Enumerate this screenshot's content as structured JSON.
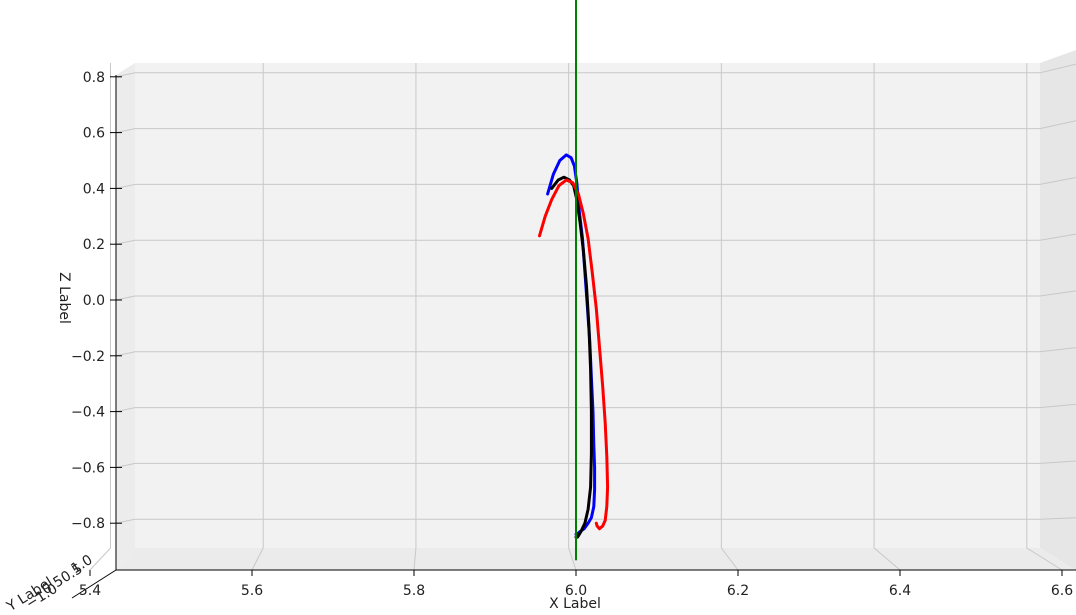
{
  "chart_data": {
    "type": "line",
    "projection": "3d",
    "title": "",
    "xlabel": "X Label",
    "ylabel": "Y Label",
    "zlabel": "Z Label",
    "xlim": [
      5.4,
      6.6
    ],
    "zlim": [
      -0.85,
      0.85
    ],
    "x_ticks": [
      "5.4",
      "5.6",
      "5.8",
      "6.0",
      "6.2",
      "6.4",
      "6.6"
    ],
    "y_ticks": [
      "−1.0",
      "−0.5",
      "0.5",
      "1.0"
    ],
    "z_ticks": [
      "−0.8",
      "−0.6",
      "−0.4",
      "−0.2",
      "0.0",
      "0.2",
      "0.4",
      "0.6",
      "0.8"
    ],
    "grid": true,
    "pane_color": "#f2f2f2",
    "series": [
      {
        "color": "#0000ff",
        "x": [
          5.965,
          5.972,
          5.98,
          5.988,
          5.994,
          5.998,
          6.001,
          6.004,
          6.008,
          6.011,
          6.014,
          6.017,
          6.019,
          6.021,
          6.022,
          6.023,
          6.023,
          6.022,
          6.019,
          6.015,
          6.01,
          6.005,
          6.001,
          6.0
        ],
        "z": [
          0.38,
          0.45,
          0.5,
          0.52,
          0.51,
          0.48,
          0.42,
          0.32,
          0.22,
          0.1,
          -0.02,
          -0.15,
          -0.28,
          -0.4,
          -0.52,
          -0.6,
          -0.68,
          -0.74,
          -0.78,
          -0.8,
          -0.82,
          -0.83,
          -0.84,
          -0.84
        ]
      },
      {
        "color": "#000000",
        "x": [
          5.97,
          5.978,
          5.985,
          5.992,
          5.997,
          6.001,
          6.005,
          6.009,
          6.013,
          6.016,
          6.018,
          6.019,
          6.019,
          6.018,
          6.015,
          6.011,
          6.006,
          6.002,
          6.0
        ],
        "z": [
          0.4,
          0.43,
          0.44,
          0.43,
          0.41,
          0.36,
          0.28,
          0.18,
          0.05,
          -0.1,
          -0.25,
          -0.4,
          -0.55,
          -0.67,
          -0.75,
          -0.8,
          -0.83,
          -0.85,
          -0.85
        ]
      },
      {
        "color": "#ff0000",
        "x": [
          5.955,
          5.962,
          5.97,
          5.979,
          5.988,
          5.996,
          6.003,
          6.009,
          6.015,
          6.02,
          6.025,
          6.029,
          6.033,
          6.036,
          6.038,
          6.039,
          6.038,
          6.036,
          6.033,
          6.029,
          6.026,
          6.025
        ],
        "z": [
          0.23,
          0.3,
          0.36,
          0.41,
          0.43,
          0.42,
          0.38,
          0.31,
          0.22,
          0.1,
          -0.03,
          -0.17,
          -0.31,
          -0.44,
          -0.56,
          -0.67,
          -0.74,
          -0.79,
          -0.81,
          -0.82,
          -0.81,
          -0.8
        ]
      },
      {
        "color": "#008000",
        "x": [
          6.0,
          6.0
        ],
        "z": [
          1.08,
          -0.93
        ]
      }
    ]
  }
}
